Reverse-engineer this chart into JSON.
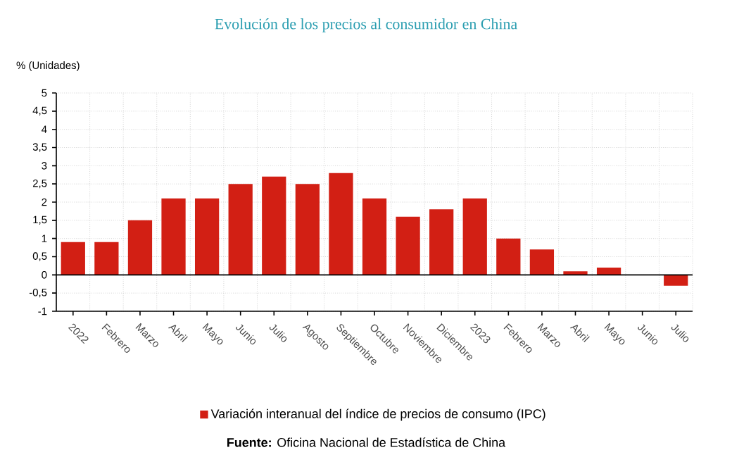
{
  "chart_data": {
    "type": "bar",
    "title": "Evolución de los precios al consumidor en China",
    "ylabel": "% (Unidades)",
    "categories": [
      "2022",
      "Febrero",
      "Marzo",
      "Abril",
      "Mayo",
      "Junio",
      "Julio",
      "Agosto",
      "Septiembre",
      "Octubre",
      "Noviembre",
      "Diciembre",
      "2023",
      "Febrero",
      "Marzo",
      "Abril",
      "Mayo",
      "Junio",
      "Julio"
    ],
    "series": [
      {
        "name": "Variación interanual del índice de precios de consumo (IPC)",
        "color": "#d21f14",
        "values": [
          0.9,
          0.9,
          1.5,
          2.1,
          2.1,
          2.5,
          2.7,
          2.5,
          2.8,
          2.1,
          1.6,
          1.8,
          2.1,
          1.0,
          0.7,
          0.1,
          0.2,
          0.0,
          -0.3
        ]
      }
    ],
    "ylim": [
      -1,
      5
    ],
    "yticks": [
      -1,
      {
        "value": -0.5,
        "label": "-0,5"
      },
      0,
      {
        "value": 0.5,
        "label": "0,5"
      },
      1,
      {
        "value": 1.5,
        "label": "1,5"
      },
      2,
      {
        "value": 2.5,
        "label": "2,5"
      },
      3,
      {
        "value": 3.5,
        "label": "3,5"
      },
      4,
      {
        "value": 4.5,
        "label": "4,5"
      },
      5
    ],
    "grid": true,
    "legend": "bottom",
    "ref_lines": [
      {
        "axis": "y",
        "value": 0,
        "color": "#000000"
      }
    ],
    "annotations": [
      "**Fuente:** Oficina Nacional de Estadística de China"
    ]
  }
}
